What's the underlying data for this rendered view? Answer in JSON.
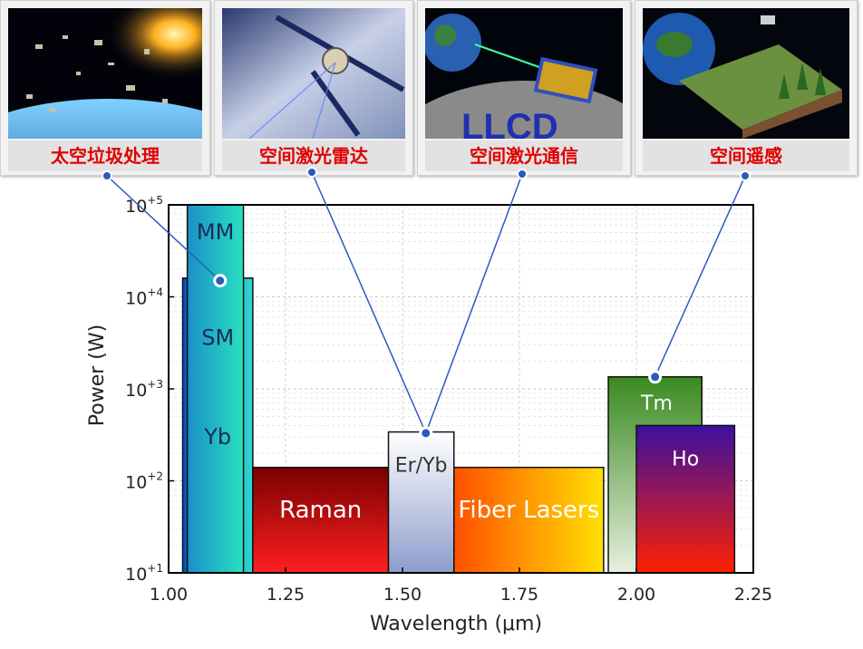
{
  "applications": [
    {
      "label": "太空垃圾处理",
      "icon": "space-debris-image"
    },
    {
      "label": "空间激光雷达",
      "icon": "satellite-lidar-image"
    },
    {
      "label": "空间激光通信",
      "icon": "laser-communication-image"
    },
    {
      "label": "空间遥感",
      "icon": "remote-sensing-image"
    }
  ],
  "chart_data": {
    "type": "bar",
    "xlabel": "Wavelength (μm)",
    "ylabel": "Power (W)",
    "xlim": [
      1.0,
      2.25
    ],
    "ylim_log10": [
      1,
      5
    ],
    "x_ticks": [
      "1.00",
      "1.25",
      "1.50",
      "1.75",
      "2.00",
      "2.25"
    ],
    "y_ticks": [
      {
        "base": "10",
        "exp": "+1"
      },
      {
        "base": "10",
        "exp": "+2"
      },
      {
        "base": "10",
        "exp": "+3"
      },
      {
        "base": "10",
        "exp": "+4"
      },
      {
        "base": "10",
        "exp": "+5"
      }
    ],
    "grid": true,
    "regions": [
      {
        "name": "Yb",
        "extra_labels": [
          "SM"
        ],
        "x": [
          1.03,
          1.18
        ],
        "power_w": 16000,
        "colors": [
          "#0050c0",
          "#30d8d0"
        ]
      },
      {
        "name": "MM",
        "x": [
          1.04,
          1.16
        ],
        "power_w": 100000,
        "colors": [
          "#1a90c8",
          "#28e0c0"
        ]
      },
      {
        "name": "Raman",
        "x": [
          1.18,
          1.47
        ],
        "power_w": 140,
        "colors": [
          "#7a0000",
          "#ff2020"
        ]
      },
      {
        "name": "Er/Yb",
        "x": [
          1.47,
          1.61
        ],
        "power_w": 340,
        "colors": [
          "#b8c8f0",
          "#ffffff"
        ]
      },
      {
        "name": "Fiber Lasers",
        "x": [
          1.61,
          1.93
        ],
        "power_w": 140,
        "colors": [
          "#ff5000",
          "#ffe000"
        ]
      },
      {
        "name": "Tm",
        "x": [
          1.94,
          2.14
        ],
        "power_w": 1350,
        "colors": [
          "#3a8a20",
          "#e8f0e0"
        ]
      },
      {
        "name": "Ho",
        "x": [
          2.0,
          2.21
        ],
        "power_w": 400,
        "colors": [
          "#3a10a0",
          "#ff2000"
        ]
      }
    ],
    "connectors": [
      {
        "from": "太空垃圾处理",
        "to": "MM/SM boundary",
        "x": 1.11,
        "power_w": 15000
      },
      {
        "from": "空间激光雷达",
        "to": "Er/Yb",
        "x": 1.55,
        "power_w": 330
      },
      {
        "from": "空间激光通信",
        "to": "Er/Yb",
        "x": 1.55,
        "power_w": 330
      },
      {
        "from": "空间遥感",
        "to": "Tm",
        "x": 2.04,
        "power_w": 1350
      }
    ]
  }
}
